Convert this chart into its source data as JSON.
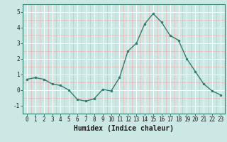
{
  "x": [
    0,
    1,
    2,
    3,
    4,
    5,
    6,
    7,
    8,
    9,
    10,
    11,
    12,
    13,
    14,
    15,
    16,
    17,
    18,
    19,
    20,
    21,
    22,
    23
  ],
  "y": [
    0.7,
    0.8,
    0.7,
    0.4,
    0.3,
    0.0,
    -0.6,
    -0.7,
    -0.55,
    0.05,
    -0.05,
    0.8,
    2.5,
    3.0,
    4.25,
    4.9,
    4.35,
    3.5,
    3.2,
    2.0,
    1.2,
    0.4,
    -0.05,
    -0.3
  ],
  "line_color": "#2e7d6e",
  "marker": "o",
  "marker_size": 2.0,
  "linewidth": 1.0,
  "bg_color": "#cce8e4",
  "grid_major_color": "#ffffff",
  "grid_minor_color": "#e8b4b4",
  "xlabel": "Humidex (Indice chaleur)",
  "ylim": [
    -1.5,
    5.5
  ],
  "xlim": [
    -0.5,
    23.5
  ],
  "yticks": [
    -1,
    0,
    1,
    2,
    3,
    4,
    5
  ],
  "xticks": [
    0,
    1,
    2,
    3,
    4,
    5,
    6,
    7,
    8,
    9,
    10,
    11,
    12,
    13,
    14,
    15,
    16,
    17,
    18,
    19,
    20,
    21,
    22,
    23
  ],
  "tick_fontsize": 5.5,
  "xlabel_fontsize": 7.0,
  "spine_color": "#2e7d6e"
}
